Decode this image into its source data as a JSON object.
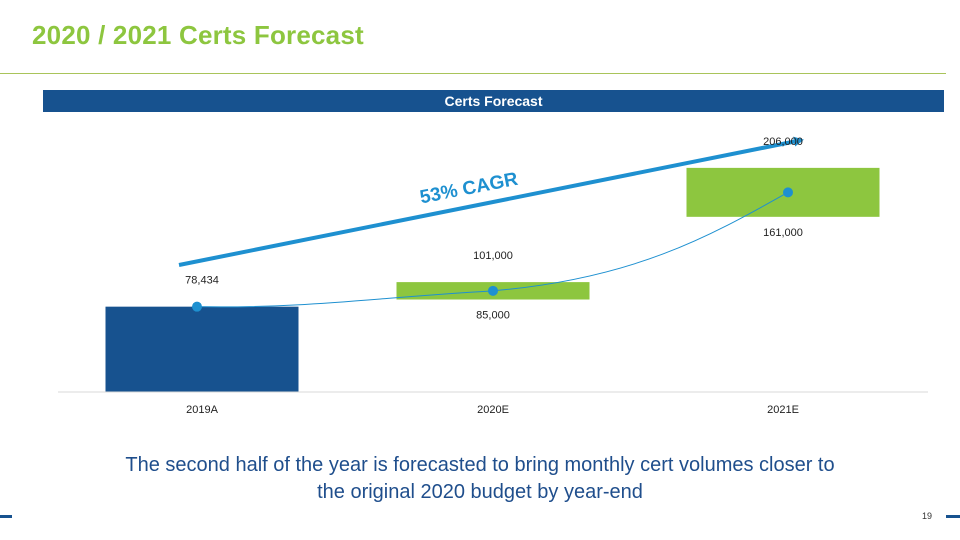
{
  "slide": {
    "title": "2020 / 2021 Certs Forecast",
    "caption_line1": "The second half of the year is forecasted to bring monthly cert volumes closer to",
    "caption_line2": "the original 2020 budget by year-end",
    "page_number": "19"
  },
  "colors": {
    "actual": "#17528f",
    "forecast": "#8dc63f",
    "trend": "#1e90d0"
  },
  "chart_data": {
    "type": "bar",
    "title": "Certs Forecast",
    "categories": [
      "2019A",
      "2020E",
      "2021E"
    ],
    "series": [
      {
        "category": "2019A",
        "kind": "actual",
        "low": 0,
        "high": 78434,
        "label_high": "78,434",
        "label_low": ""
      },
      {
        "category": "2020E",
        "kind": "range",
        "low": 85000,
        "high": 101000,
        "label_high": "101,000",
        "label_low": "85,000"
      },
      {
        "category": "2021E",
        "kind": "range",
        "low": 161000,
        "high": 206000,
        "label_high": "206,000",
        "label_low": "161,000"
      }
    ],
    "trend_points": [
      78434,
      93000,
      183500
    ],
    "annotation": "53% CAGR",
    "ylim": [
      0,
      250000
    ],
    "grid": false,
    "legend": "none"
  }
}
